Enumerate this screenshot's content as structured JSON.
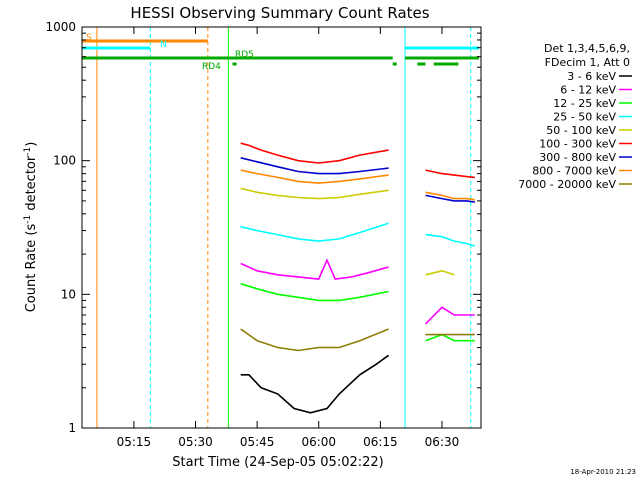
{
  "title": "HESSI Observing Summary Count Rates",
  "footer_timestamp": "18-Apr-2010 21:23",
  "chart_data": {
    "type": "line",
    "title": "HESSI Observing Summary Count Rates",
    "xlabel": "Start Time (24-Sep-05 05:02:22)",
    "ylabel_main": "Count Rate (s",
    "ylabel_sup1": "-1",
    "ylabel_mid": " detector",
    "ylabel_sup2": "-1",
    "ylabel_end": ")",
    "y_scale": "log",
    "ylim": [
      1,
      1000
    ],
    "xlim": [
      "05:02:22",
      "06:39:30"
    ],
    "x_ticks": [
      "05:15",
      "05:30",
      "05:45",
      "06:00",
      "06:15",
      "06:30"
    ],
    "y_ticks": [
      "1",
      "10",
      "100",
      "1000"
    ],
    "legend_header": [
      "Det 1,3,4,5,6,9,",
      "FDecim 1, Att 0"
    ],
    "legend_position": "right",
    "series": [
      {
        "name": "3 - 6 keV",
        "color": "#000000",
        "segments": [
          {
            "x": [
              "05:41",
              "05:43",
              "05:46",
              "05:50",
              "05:54",
              "05:58",
              "06:02",
              "06:05",
              "06:10",
              "06:14",
              "06:17"
            ],
            "y": [
              2.5,
              2.5,
              2.0,
              1.8,
              1.4,
              1.3,
              1.4,
              1.8,
              2.5,
              3.0,
              3.5
            ]
          }
        ]
      },
      {
        "name": "6 - 12 keV",
        "color": "#ff00ff",
        "segments": [
          {
            "x": [
              "05:41",
              "05:45",
              "05:50",
              "05:55",
              "06:00",
              "06:02",
              "06:04",
              "06:08",
              "06:12",
              "06:17"
            ],
            "y": [
              17,
              15,
              14,
              13.5,
              13,
              18,
              13,
              13.5,
              14.5,
              16
            ]
          },
          {
            "x": [
              "06:26",
              "06:30",
              "06:33",
              "06:36",
              "06:38"
            ],
            "y": [
              6,
              8,
              7,
              7,
              7
            ]
          }
        ]
      },
      {
        "name": "12 - 25 keV",
        "color": "#00ff00",
        "segments": [
          {
            "x": [
              "05:41",
              "05:45",
              "05:50",
              "05:55",
              "06:00",
              "06:05",
              "06:10",
              "06:17"
            ],
            "y": [
              12,
              11,
              10,
              9.5,
              9,
              9,
              9.5,
              10.5
            ]
          },
          {
            "x": [
              "06:26",
              "06:30",
              "06:33",
              "06:36",
              "06:38"
            ],
            "y": [
              4.5,
              5,
              4.5,
              4.5,
              4.5
            ]
          }
        ]
      },
      {
        "name": "25 - 50 keV",
        "color": "#00ffff",
        "segments": [
          {
            "x": [
              "05:41",
              "05:45",
              "05:50",
              "05:55",
              "06:00",
              "06:05",
              "06:10",
              "06:17"
            ],
            "y": [
              32,
              30,
              28,
              26,
              25,
              26,
              29,
              34
            ]
          },
          {
            "x": [
              "06:26",
              "06:30",
              "06:33",
              "06:36",
              "06:38"
            ],
            "y": [
              28,
              27,
              25,
              24,
              23
            ]
          }
        ]
      },
      {
        "name": "50 - 100 keV",
        "color": "#cccc00",
        "segments": [
          {
            "x": [
              "05:41",
              "05:45",
              "05:50",
              "05:55",
              "06:00",
              "06:05",
              "06:10",
              "06:17"
            ],
            "y": [
              62,
              58,
              55,
              53,
              52,
              53,
              56,
              60
            ]
          },
          {
            "x": [
              "06:26",
              "06:30",
              "06:33"
            ],
            "y": [
              14,
              15,
              14
            ]
          }
        ]
      },
      {
        "name": "100 - 300 keV",
        "color": "#ff0000",
        "segments": [
          {
            "x": [
              "05:41",
              "05:43",
              "05:46",
              "05:50",
              "05:55",
              "06:00",
              "06:05",
              "06:10",
              "06:17"
            ],
            "y": [
              135,
              130,
              120,
              110,
              100,
              96,
              100,
              110,
              120
            ]
          },
          {
            "x": [
              "06:26",
              "06:30",
              "06:33",
              "06:36",
              "06:38"
            ],
            "y": [
              85,
              80,
              78,
              76,
              75
            ]
          }
        ]
      },
      {
        "name": "300 - 800 keV",
        "color": "#0000cc",
        "segments": [
          {
            "x": [
              "05:41",
              "05:45",
              "05:50",
              "05:55",
              "06:00",
              "06:05",
              "06:10",
              "06:17"
            ],
            "y": [
              105,
              98,
              90,
              83,
              80,
              80,
              83,
              88
            ]
          },
          {
            "x": [
              "06:26",
              "06:30",
              "06:33",
              "06:36",
              "06:38"
            ],
            "y": [
              55,
              52,
              50,
              50,
              49
            ]
          }
        ]
      },
      {
        "name": "800 - 7000 keV",
        "color": "#ff8800",
        "segments": [
          {
            "x": [
              "05:41",
              "05:45",
              "05:50",
              "05:55",
              "06:00",
              "06:05",
              "06:10",
              "06:17"
            ],
            "y": [
              85,
              80,
              75,
              70,
              68,
              70,
              73,
              78
            ]
          },
          {
            "x": [
              "06:26",
              "06:30",
              "06:33",
              "06:36",
              "06:38"
            ],
            "y": [
              58,
              55,
              52,
              52,
              51
            ]
          }
        ]
      },
      {
        "name": "7000 - 20000 keV",
        "color": "#8b7d00",
        "segments": [
          {
            "x": [
              "05:41",
              "05:45",
              "05:50",
              "05:55",
              "06:00",
              "06:05",
              "06:10",
              "06:17"
            ],
            "y": [
              5.5,
              4.5,
              4.0,
              3.8,
              4.0,
              4.0,
              4.5,
              5.5
            ]
          },
          {
            "x": [
              "06:26",
              "06:30",
              "06:33",
              "06:36",
              "06:38"
            ],
            "y": [
              5,
              5,
              5,
              5,
              5
            ]
          }
        ]
      }
    ],
    "vertical_lines": [
      {
        "time": "05:06",
        "color": "#ff8800",
        "style": "solid"
      },
      {
        "time": "05:19",
        "color": "#00ffff",
        "style": "dashed"
      },
      {
        "time": "05:33",
        "color": "#ff8800",
        "style": "dashed"
      },
      {
        "time": "05:38",
        "color": "#00ff00",
        "style": "solid"
      },
      {
        "time": "06:21",
        "color": "#00ffff",
        "style": "solid"
      },
      {
        "time": "06:37",
        "color": "#00ffff",
        "style": "dashed"
      }
    ],
    "flag_bars": [
      {
        "label": "S",
        "color": "#ff8800",
        "segments": [
          [
            "05:02",
            "05:33"
          ]
        ]
      },
      {
        "label": "N",
        "color": "#00ffff",
        "segments": [
          [
            "05:02",
            "05:19"
          ],
          [
            "06:21",
            "06:39"
          ]
        ]
      },
      {
        "label": "RD5",
        "color": "#00aa00",
        "segments": [
          [
            "05:02",
            "06:18"
          ],
          [
            "06:21",
            "06:39"
          ]
        ]
      },
      {
        "label": "RD4",
        "color": "#00aa00",
        "segments": [
          [
            "05:39",
            "05:40"
          ],
          [
            "06:18",
            "06:19"
          ],
          [
            "06:24",
            "06:26"
          ],
          [
            "06:28",
            "06:34"
          ]
        ]
      }
    ]
  }
}
